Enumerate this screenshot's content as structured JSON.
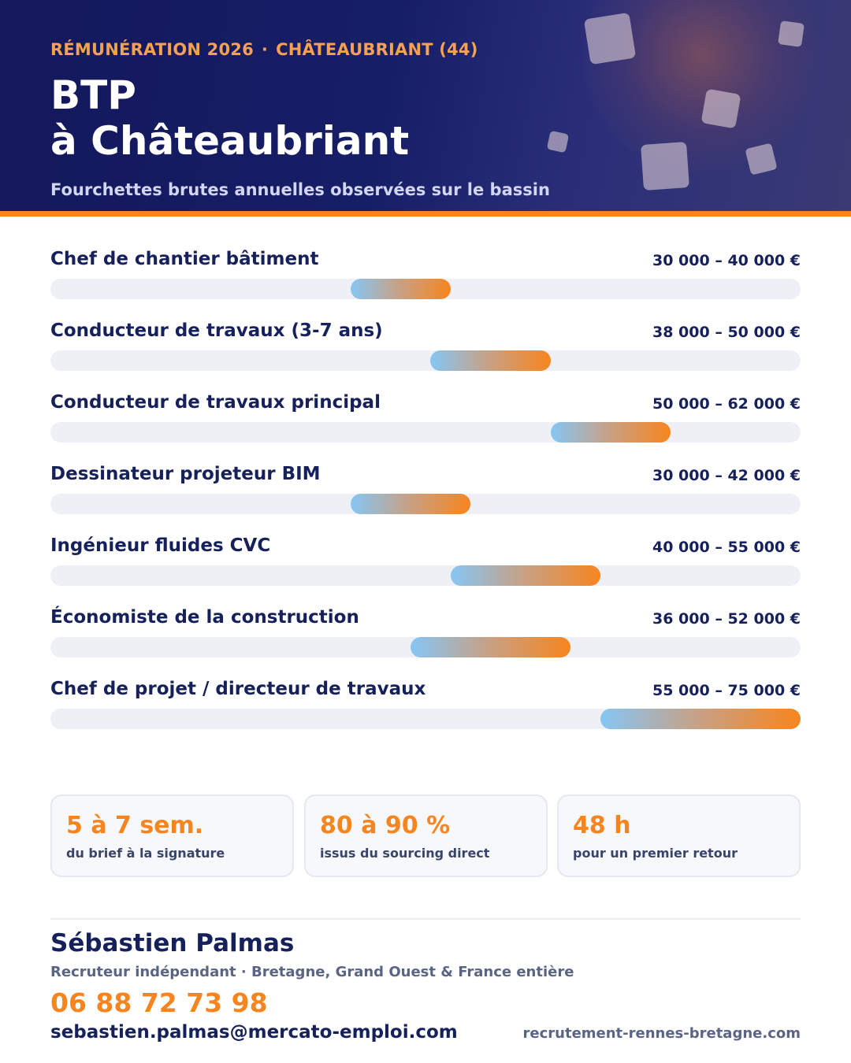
{
  "header": {
    "kicker_left": "RÉMUNÉRATION 2026",
    "kicker_sep": "·",
    "kicker_right": "CHÂTEAUBRIANT (44)",
    "title_line1": "BTP",
    "title_line2": "à Châteaubriant",
    "subtitle": "Fourchettes brutes annuelles observées sur le bassin"
  },
  "chart_data": {
    "type": "bar",
    "orientation": "horizontal-range",
    "axis_min": 0,
    "axis_max": 75000,
    "unit": "€",
    "grid": false,
    "categories": [
      "Chef de chantier bâtiment",
      "Conducteur de travaux (3-7 ans)",
      "Conducteur de travaux principal",
      "Dessinateur projeteur BIM",
      "Ingénieur fluides CVC",
      "Économiste de la construction",
      "Chef de projet / directeur de travaux"
    ],
    "series": [
      {
        "values": [
          {
            "min": 30000,
            "max": 40000
          },
          {
            "min": 38000,
            "max": 50000
          },
          {
            "min": 50000,
            "max": 62000
          },
          {
            "min": 30000,
            "max": 42000
          },
          {
            "min": 40000,
            "max": 55000
          },
          {
            "min": 36000,
            "max": 52000
          },
          {
            "min": 55000,
            "max": 75000
          }
        ]
      }
    ],
    "range_labels": [
      "30 000 – 40 000 €",
      "38 000 – 50 000 €",
      "50 000 – 62 000 €",
      "30 000 – 42 000 €",
      "40 000 – 55 000 €",
      "36 000 – 52 000 €",
      "55 000 – 75 000 €"
    ],
    "colors": {
      "track": "#eef0f6",
      "bar_start": "#86c6f4",
      "bar_end": "#f7851f"
    }
  },
  "stats": [
    {
      "value": "5 à 7 sem.",
      "caption": "du brief à la signature"
    },
    {
      "value": "80 à 90 %",
      "caption": "issus du sourcing direct"
    },
    {
      "value": "48 h",
      "caption": "pour un premier retour"
    }
  ],
  "contact": {
    "name": "Sébastien Palmas",
    "role": "Recruteur indépendant · Bretagne, Grand Ouest & France entière",
    "phone": "06 88 72 73 98",
    "email": "sebastien.palmas@mercato-emploi.com",
    "website": "recrutement-rennes-bretagne.com"
  },
  "colors": {
    "navy": "#16205a",
    "accent": "#f7851f",
    "kicker": "#f6a053"
  }
}
